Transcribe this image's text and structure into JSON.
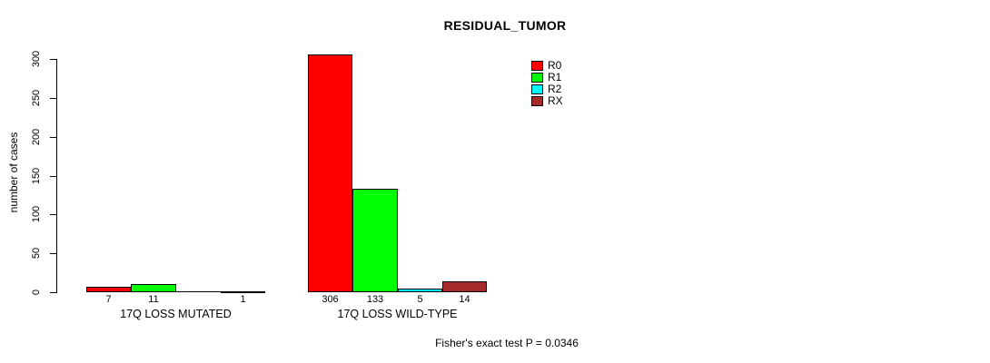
{
  "title": "RESIDUAL_TUMOR",
  "chart_data": {
    "type": "bar",
    "title": "RESIDUAL_TUMOR",
    "xlabel": "",
    "ylabel": "number of cases",
    "ylim": [
      0,
      300
    ],
    "yticks": [
      0,
      50,
      100,
      150,
      200,
      250,
      300
    ],
    "grid": false,
    "legend_position": "right",
    "legend": [
      {
        "label": "R0",
        "color": "#FF0000"
      },
      {
        "label": "R1",
        "color": "#00FF00"
      },
      {
        "label": "R2",
        "color": "#00FFFF"
      },
      {
        "label": "RX",
        "color": "#A52A2A"
      }
    ],
    "categories": [
      "17Q LOSS MUTATED",
      "17Q LOSS WILD-TYPE"
    ],
    "series": [
      {
        "name": "R0",
        "values": [
          7,
          306
        ]
      },
      {
        "name": "R1",
        "values": [
          11,
          133
        ]
      },
      {
        "name": "R2",
        "values": [
          0,
          5
        ]
      },
      {
        "name": "RX",
        "values": [
          1,
          14
        ]
      }
    ],
    "bar_value_labels": [
      [
        "7",
        "11",
        "",
        "1"
      ],
      [
        "306",
        "133",
        "5",
        "14"
      ]
    ],
    "annotation": "Fisher's exact test P = 0.0346"
  }
}
